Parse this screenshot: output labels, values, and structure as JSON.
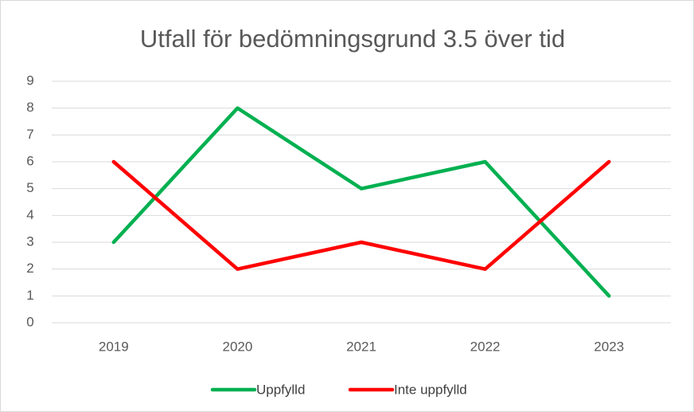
{
  "chart_data": {
    "type": "line",
    "title": "Utfall för bedömningsgrund 3.5 över tid",
    "categories": [
      "2019",
      "2020",
      "2021",
      "2022",
      "2023"
    ],
    "series": [
      {
        "name": "Uppfylld",
        "color": "#00b050",
        "values": [
          3,
          8,
          5,
          6,
          1
        ]
      },
      {
        "name": "Inte uppfylld",
        "color": "#ff0000",
        "values": [
          6,
          2,
          3,
          2,
          6
        ]
      }
    ],
    "ylim": [
      0,
      9
    ],
    "yticks": [
      0,
      1,
      2,
      3,
      4,
      5,
      6,
      7,
      8,
      9
    ],
    "grid": true,
    "legend": "bottom"
  }
}
